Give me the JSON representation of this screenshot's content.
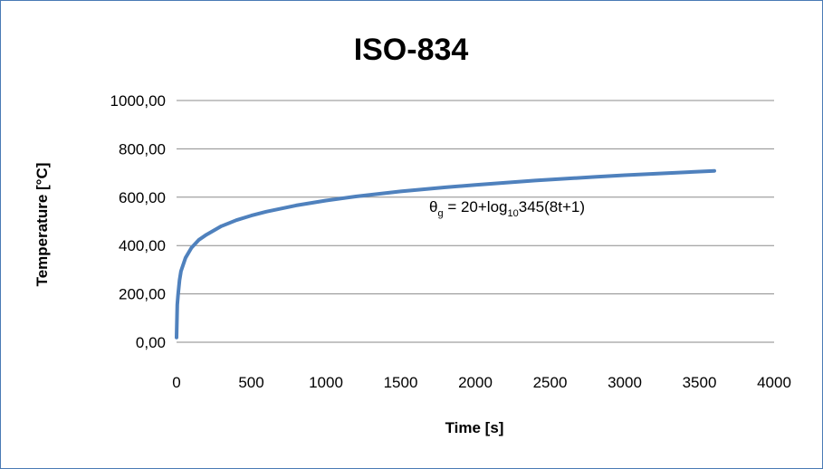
{
  "chart_data": {
    "type": "line",
    "title": "ISO-834",
    "xlabel": "Time [s]",
    "ylabel": "Temperature [°C]",
    "xlim": [
      0,
      4000
    ],
    "ylim": [
      0,
      1000
    ],
    "x_ticks": [
      "0",
      "500",
      "1000",
      "1500",
      "2000",
      "2500",
      "3000",
      "3500",
      "4000"
    ],
    "y_ticks": [
      "0,00",
      "200,00",
      "400,00",
      "600,00",
      "800,00",
      "1000,00"
    ],
    "grid": "horizontal",
    "formula": {
      "theta": "θ",
      "theta_sub": "g",
      "eq": " = 20+log",
      "log_sub": "10",
      "rest": "345(8t+1)"
    },
    "series": [
      {
        "color": "#4f81bd",
        "x": [
          0,
          5,
          10,
          20,
          30,
          60,
          100,
          150,
          200,
          300,
          400,
          500,
          600,
          800,
          1000,
          1200,
          1500,
          1800,
          2000,
          2400,
          2800,
          3000,
          3300,
          3600
        ],
        "y": [
          20,
          155,
          197,
          257,
          294,
          349,
          391,
          424,
          445,
          480,
          505,
          524,
          540,
          566,
          586,
          603,
          624,
          641,
          651,
          669,
          684,
          691,
          700,
          709
        ]
      }
    ]
  }
}
